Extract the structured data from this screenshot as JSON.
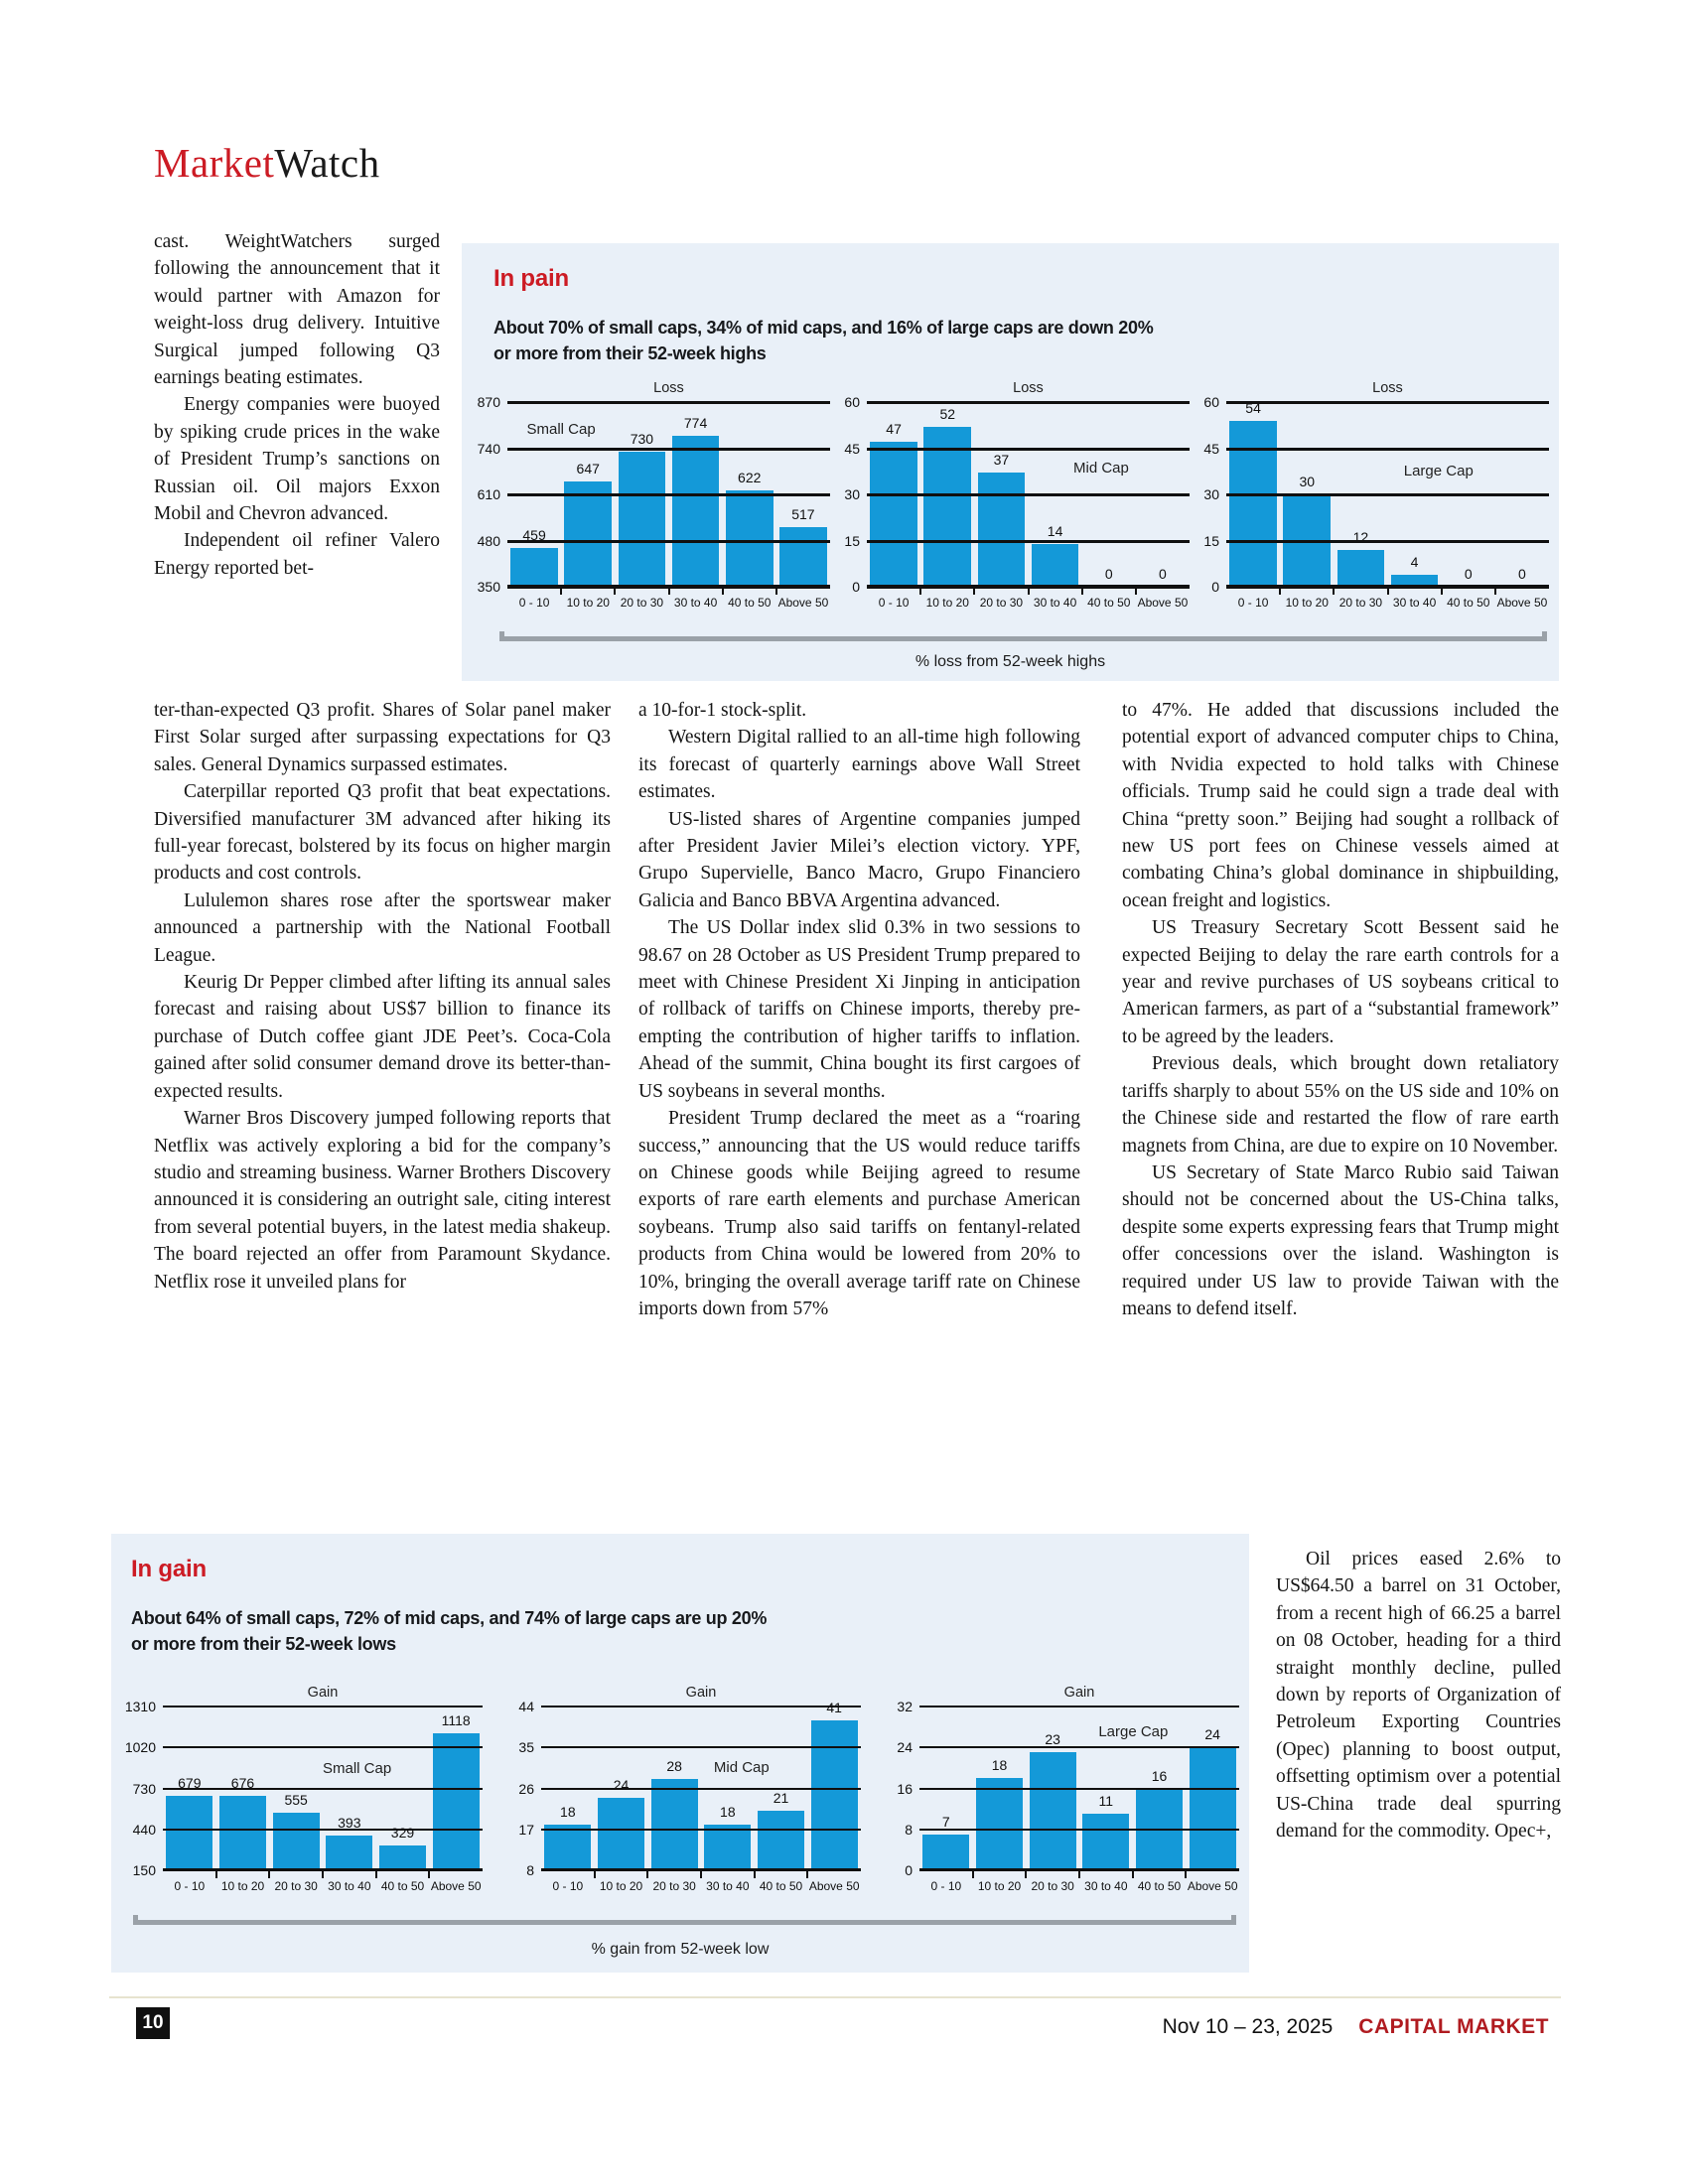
{
  "header": {
    "title_red": "Market",
    "title_black": "Watch"
  },
  "colors": {
    "accent_red": "#cc1b24",
    "footer_red": "#b01b20",
    "bar_blue": "#1499d8",
    "panel_bg": "#e9f0f8"
  },
  "articles": {
    "col1_narrow": {
      "continues": true,
      "paragraphs": [
        "cast. WeightWatchers surged following the announcement that it would partner with Amazon for weight-loss drug delivery. Intuitive Surgical jumped following Q3 earnings beating estimates.",
        "Energy companies were buoyed by spiking crude prices in the wake of President Trump’s sanctions on Russian oil. Oil majors Exxon Mobil and Chevron advanced.",
        "Independent oil refiner Valero Energy reported bet-"
      ]
    },
    "col1_wide": {
      "continues": true,
      "paragraphs": [
        "ter-than-expected Q3 profit. Shares of Solar panel maker First Solar surged after surpassing expectations for Q3 sales. General Dynamics surpassed estimates.",
        "Caterpillar reported Q3 profit that beat expectations. Diversified manufacturer 3M advanced after hiking its full-year forecast, bolstered by its focus on higher margin products and cost controls.",
        "Lululemon shares rose after the sportswear maker announced a partnership with the National Football League.",
        "Keurig Dr Pepper climbed after lifting its annual sales forecast and raising about US$7 billion to finance its purchase of Dutch coffee giant JDE Peet’s. Coca-Cola gained after solid consumer demand drove its better-than-expected results.",
        "Warner Bros Discovery jumped following reports that Netflix was actively exploring a bid for the company’s studio and streaming business. Warner Brothers Discovery announced it is considering an outright sale, citing interest from several potential buyers, in the latest media shakeup. The board rejected an offer from Paramount Skydance. Netflix rose it unveiled plans for"
      ]
    },
    "col2": {
      "continues": true,
      "paragraphs": [
        "a 10-for-1 stock-split.",
        "Western Digital rallied to an all-time high following its forecast of quarterly earnings above Wall Street estimates.",
        "US-listed shares of Argentine companies jumped after President Javier Milei’s election victory. YPF, Grupo Supervielle, Banco Macro, Grupo Financiero Galicia and Banco BBVA Argentina advanced.",
        "The US Dollar index slid 0.3% in two sessions to 98.67 on 28 October as US President Trump prepared to meet with Chinese President Xi Jinping in anticipation of rollback of tariffs on Chinese imports, thereby pre-empting the contribution of higher tariffs to inflation. Ahead of the summit, China bought its first cargoes of US soybeans in several months.",
        "President Trump declared the meet as a “roaring success,” announcing that the US would reduce tariffs on Chinese goods while Beijing agreed to resume exports of rare earth elements and purchase American soybeans. Trump also said tariffs on fentanyl-related products from China would be lowered from 20% to 10%, bringing the overall average tariff rate on Chinese imports down from 57%"
      ]
    },
    "col3": {
      "continues": true,
      "paragraphs": [
        "to 47%. He added that discussions included the potential export of advanced computer chips to China, with Nvidia expected to hold talks with Chinese officials. Trump said he could sign a trade deal with China “pretty soon.” Beijing had sought a rollback of new US port fees on Chinese vessels aimed at combating China’s global dominance in shipbuilding, ocean freight and logistics.",
        "US Treasury Secretary Scott Bessent said he expected Beijing to delay the rare earth controls for a year and revive purchases of US soybeans critical to American farmers, as part of a “substantial framework” to be agreed by the leaders.",
        "Previous deals, which brought down retaliatory tariffs sharply to about 55% on the US side and 10% on the Chinese side and restarted the flow of rare earth magnets from China, are due to expire on 10 November.",
        "US Secretary of State Marco Rubio said Taiwan should not be concerned about the US-China talks, despite some experts expressing fears that Trump might offer concessions over the island. Washington is required under US law to provide Taiwan with the means to defend itself."
      ]
    },
    "col3_narrow": {
      "continues": false,
      "paragraphs": [
        "Oil prices eased 2.6% to US$64.50 a barrel on 31 October, from a recent high of 66.25 a barrel on 08 October, heading for a third straight monthly decline, pulled down by reports of Organization of Petroleum Exporting Countries (Opec) planning to boost output, offsetting optimism over a potential US-China trade deal spurring demand for the commodity. Opec+,"
      ]
    }
  },
  "pain_panel": {
    "title": "In pain",
    "subtitle_line1": "About 70% of small caps, 34% of mid caps, and 16% of large caps are down 20%",
    "subtitle_line2": "or more from their 52-week highs",
    "axis_caption": "% loss from 52-week highs"
  },
  "gain_panel": {
    "title": "In gain",
    "subtitle_line1": "About 64% of small caps, 72% of mid caps, and 74% of large caps are up 20%",
    "subtitle_line2": "or more from their 52-week lows",
    "axis_caption": "% gain from 52-week low"
  },
  "chart_data": [
    {
      "panel": "pain",
      "type": "bar",
      "title": "Loss",
      "group_label": "Small Cap",
      "label_pos": {
        "left": 6,
        "top": 10
      },
      "categories": [
        "0 - 10",
        "10 to 20",
        "20 to 30",
        "30 to 40",
        "40 to 50",
        "Above 50"
      ],
      "values": [
        459,
        647,
        730,
        774,
        622,
        517
      ],
      "y_ticks": [
        870,
        740,
        610,
        480,
        350
      ],
      "ylim": [
        350,
        870
      ],
      "xlabel": "% loss from 52-week highs",
      "grid": true
    },
    {
      "panel": "pain",
      "type": "bar",
      "title": "Loss",
      "group_label": "Mid Cap",
      "label_pos": {
        "left": 64,
        "top": 31
      },
      "categories": [
        "0 - 10",
        "10 to 20",
        "20 to 30",
        "30 to 40",
        "40 to 50",
        "Above 50"
      ],
      "values": [
        47,
        52,
        37,
        14,
        0,
        0
      ],
      "y_ticks": [
        60,
        45,
        30,
        15,
        0
      ],
      "ylim": [
        0,
        60
      ],
      "xlabel": "% loss from 52-week highs",
      "grid": true
    },
    {
      "panel": "pain",
      "type": "bar",
      "title": "Loss",
      "group_label": "Large Cap",
      "label_pos": {
        "left": 55,
        "top": 33
      },
      "categories": [
        "0 - 10",
        "10 to 20",
        "20 to 30",
        "30 to 40",
        "40 to 50",
        "Above 50"
      ],
      "values": [
        54,
        30,
        12,
        4,
        0,
        0
      ],
      "y_ticks": [
        60,
        45,
        30,
        15,
        0
      ],
      "ylim": [
        0,
        60
      ],
      "xlabel": "% loss from 52-week highs",
      "grid": true
    },
    {
      "panel": "gain",
      "type": "bar",
      "title": "Gain",
      "group_label": "Small Cap",
      "label_pos": {
        "left": 50,
        "top": 33
      },
      "categories": [
        "0 - 10",
        "10 to 20",
        "20 to 30",
        "30 to 40",
        "40 to 50",
        "Above 50"
      ],
      "values": [
        679,
        676,
        555,
        393,
        329,
        1118
      ],
      "y_ticks": [
        1310,
        1020,
        730,
        440,
        150
      ],
      "ylim": [
        150,
        1310
      ],
      "xlabel": "% gain from 52-week low",
      "grid": true
    },
    {
      "panel": "gain",
      "type": "bar",
      "title": "Gain",
      "group_label": "Mid Cap",
      "label_pos": {
        "left": 54,
        "top": 32
      },
      "categories": [
        "0 - 10",
        "10 to 20",
        "20 to 30",
        "30 to 40",
        "40 to 50",
        "Above 50"
      ],
      "values": [
        18,
        24,
        28,
        18,
        21,
        41
      ],
      "y_ticks": [
        44,
        35,
        26,
        17,
        8
      ],
      "ylim": [
        8,
        44
      ],
      "xlabel": "% gain from 52-week low",
      "grid": true
    },
    {
      "panel": "gain",
      "type": "bar",
      "title": "Gain",
      "group_label": "Large Cap",
      "label_pos": {
        "left": 56,
        "top": 10
      },
      "categories": [
        "0 - 10",
        "10 to 20",
        "20 to 30",
        "30 to 40",
        "40 to 50",
        "Above 50"
      ],
      "values": [
        7,
        18,
        23,
        11,
        16,
        24
      ],
      "y_ticks": [
        32,
        24,
        16,
        8,
        0
      ],
      "ylim": [
        0,
        32
      ],
      "xlabel": "% gain from 52-week low",
      "grid": true
    }
  ],
  "footer": {
    "page_number": "10",
    "date": "Nov 10 – 23, 2025",
    "publication": "CAPITAL MARKET"
  }
}
